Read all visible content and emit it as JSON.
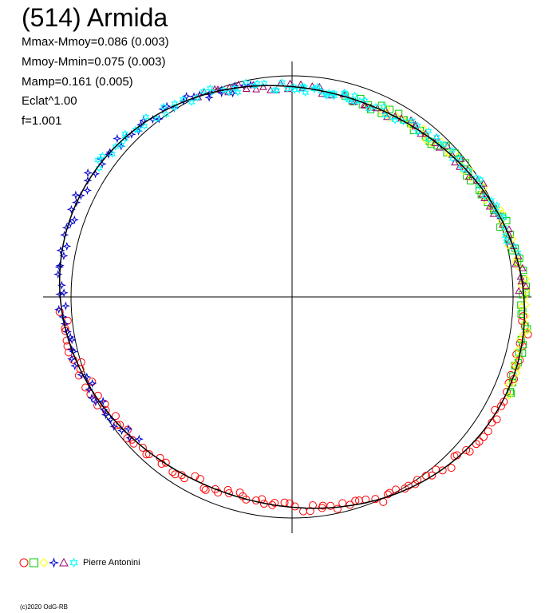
{
  "title": "(514) Armida",
  "stats": [
    "Mmax-Mmoy=0.086 (0.003)",
    "Mmoy-Mmin=0.075 (0.003)",
    "Mamp=0.161 (0.005)",
    "Eclat^1.00",
    "f=1.001"
  ],
  "legend": {
    "label": "Pierre Antonini",
    "symbols": [
      {
        "shape": "circle",
        "color": "#ff0000"
      },
      {
        "shape": "square",
        "color": "#00cc00"
      },
      {
        "shape": "diamond",
        "color": "#ffff00"
      },
      {
        "shape": "star4",
        "color": "#0000cc"
      },
      {
        "shape": "triangle",
        "color": "#990066"
      },
      {
        "shape": "star6",
        "color": "#00ffff"
      }
    ]
  },
  "copyright": "(c)2020 OdG-RB",
  "chart_data": {
    "type": "scatter",
    "projection": "polar phase plot",
    "reference_circle_radius": 1.0,
    "amplitude_mag": 0.161,
    "mmax_minus_mean": 0.086,
    "mean_minus_mmin": 0.075,
    "grid": "cross axes through center",
    "model_curve": {
      "coefficients_mag": [
        [
          0.0,
          0.043,
          0.035
        ],
        [
          0.0,
          -0.002,
          0.0
        ],
        [
          0.0,
          0.0,
          0.0
        ]
      ],
      "description": "fitted light curve"
    },
    "series": [
      {
        "shape": "circle",
        "color": "#ff0000",
        "phase_ranges": [
          [
            0.26,
            0.74
          ]
        ]
      },
      {
        "shape": "square",
        "color": "#00cc00",
        "phase_ranges": [
          [
            0.04,
            0.32
          ]
        ]
      },
      {
        "shape": "diamond",
        "color": "#ffff00",
        "phase_ranges": [
          [
            0.06,
            0.32
          ]
        ]
      },
      {
        "shape": "star4",
        "color": "#0000cc",
        "phase_ranges": [
          [
            0.63,
            0.97
          ]
        ]
      },
      {
        "shape": "triangle",
        "color": "#990066",
        "phase_ranges": [
          [
            0.93,
            1.25
          ]
        ]
      },
      {
        "shape": "star6",
        "color": "#00ffff",
        "phase_ranges": [
          [
            0.84,
            1.05
          ],
          [
            0.0,
            0.22
          ]
        ]
      }
    ]
  }
}
